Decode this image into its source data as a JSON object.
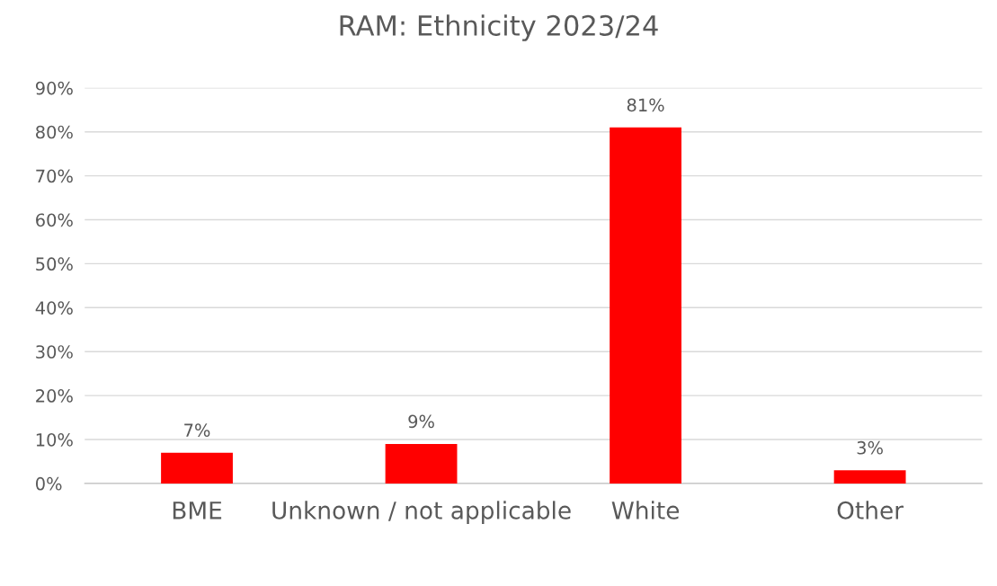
{
  "chart_data": {
    "type": "bar",
    "title": "RAM: Ethnicity 2023/24",
    "categories": [
      "BME",
      "Unknown / not applicable",
      "White",
      "Other"
    ],
    "values": [
      7,
      9,
      81,
      3
    ],
    "value_labels": [
      "7%",
      "9%",
      "81%",
      "3%"
    ],
    "color": "#ff0000",
    "ylim": [
      0,
      90
    ],
    "yticks": [
      {
        "value": 0,
        "label": "0%"
      },
      {
        "value": 10,
        "label": "10%"
      },
      {
        "value": 20,
        "label": "20%"
      },
      {
        "value": 30,
        "label": "30%"
      },
      {
        "value": 40,
        "label": "40%"
      },
      {
        "value": 50,
        "label": "50%"
      },
      {
        "value": 60,
        "label": "60%"
      },
      {
        "value": 70,
        "label": "70%"
      },
      {
        "value": 80,
        "label": "80%"
      },
      {
        "value": 90,
        "label": "90%"
      }
    ],
    "grid": "y"
  }
}
